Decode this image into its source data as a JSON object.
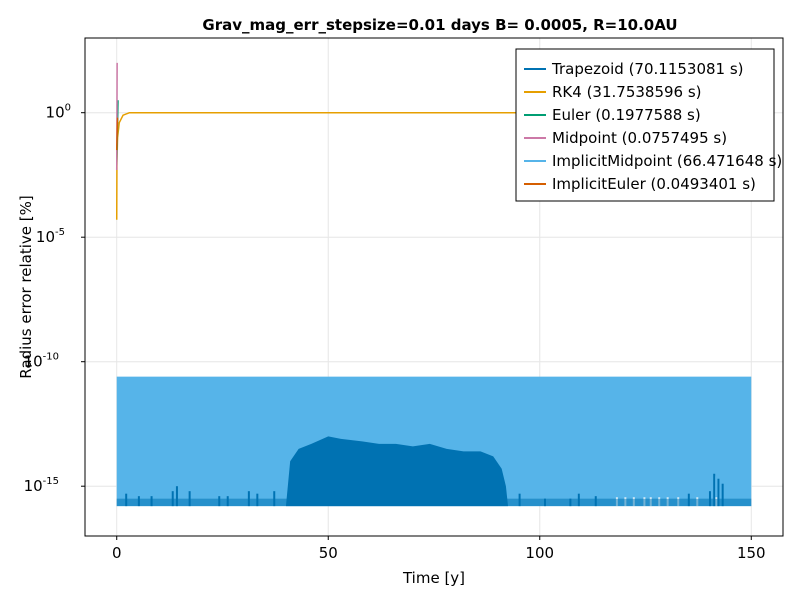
{
  "chart_data": {
    "type": "line",
    "title": "Grav_mag_err_stepsize=0.01 days B= 0.0005, R=10.0AU",
    "xlabel": "Time [y]",
    "ylabel": "Radius error relative [%]",
    "xscale": "linear",
    "yscale": "log",
    "xlim": [
      -7.5,
      157.5
    ],
    "ylim_log10": [
      -17.0,
      3.0
    ],
    "x_ticks": [
      {
        "value": 0,
        "label": "0"
      },
      {
        "value": 50,
        "label": "50"
      },
      {
        "value": 100,
        "label": "100"
      },
      {
        "value": 150,
        "label": "150"
      }
    ],
    "y_ticks": [
      {
        "log10": 0,
        "base": "10",
        "exp": "0"
      },
      {
        "log10": -5,
        "base": "10",
        "exp": "-5"
      },
      {
        "log10": -10,
        "base": "10",
        "exp": "-10"
      },
      {
        "log10": -15,
        "base": "10",
        "exp": "-15"
      }
    ],
    "grid": true,
    "legend_position": "top-right",
    "series": [
      {
        "name": "Trapezoid (70.1153081 s)",
        "color": "#0072b2",
        "description_points": [
          {
            "x": 0,
            "log10_min": -15.8,
            "log10_max": -15.4
          },
          {
            "x": 40,
            "log10_min": -15.8,
            "log10_max": -15.2
          },
          {
            "x": 41,
            "log10_min": -15.8,
            "log10_max": -14.0
          },
          {
            "x": 50,
            "log10_min": -15.8,
            "log10_max": -13.0
          },
          {
            "x": 75,
            "log10_min": -15.8,
            "log10_max": -13.3
          },
          {
            "x": 90,
            "log10_min": -15.8,
            "log10_max": -13.8
          },
          {
            "x": 92,
            "log10_min": -15.8,
            "log10_max": -15.0
          },
          {
            "x": 150,
            "log10_min": -15.8,
            "log10_max": -15.3
          }
        ]
      },
      {
        "name": "RK4 (31.7538596 s)",
        "color": "#e69f00",
        "points": [
          {
            "x": 0.0,
            "log10": -4.3
          },
          {
            "x": 0.05,
            "log10": -2.0
          },
          {
            "x": 0.2,
            "log10": -1.0
          },
          {
            "x": 0.6,
            "log10": -0.4
          },
          {
            "x": 1.5,
            "log10": -0.1
          },
          {
            "x": 3.0,
            "log10": 0.0
          },
          {
            "x": 150.0,
            "log10": 0.0
          }
        ]
      },
      {
        "name": "Euler (0.1977588 s)",
        "color": "#009e73",
        "points": [
          {
            "x": 0.0,
            "log10": -2.2
          },
          {
            "x": 0.3,
            "log10": 0.5
          }
        ]
      },
      {
        "name": "Midpoint (0.0757495 s)",
        "color": "#cc79a7",
        "points": [
          {
            "x": 0.0,
            "log10": -2.3
          },
          {
            "x": 0.1,
            "log10": 2.0
          }
        ]
      },
      {
        "name": "ImplicitMidpoint (66.471648 s)",
        "color": "#56b4e9",
        "band": {
          "x_start": 0,
          "x_end": 150,
          "log10_min": -15.8,
          "log10_max": -10.6
        }
      },
      {
        "name": "ImplicitEuler (0.0493401 s)",
        "color": "#d55e00",
        "points": [
          {
            "x": 0.0,
            "log10": -1.5
          },
          {
            "x": 0.2,
            "log10": -0.2
          }
        ]
      }
    ]
  }
}
